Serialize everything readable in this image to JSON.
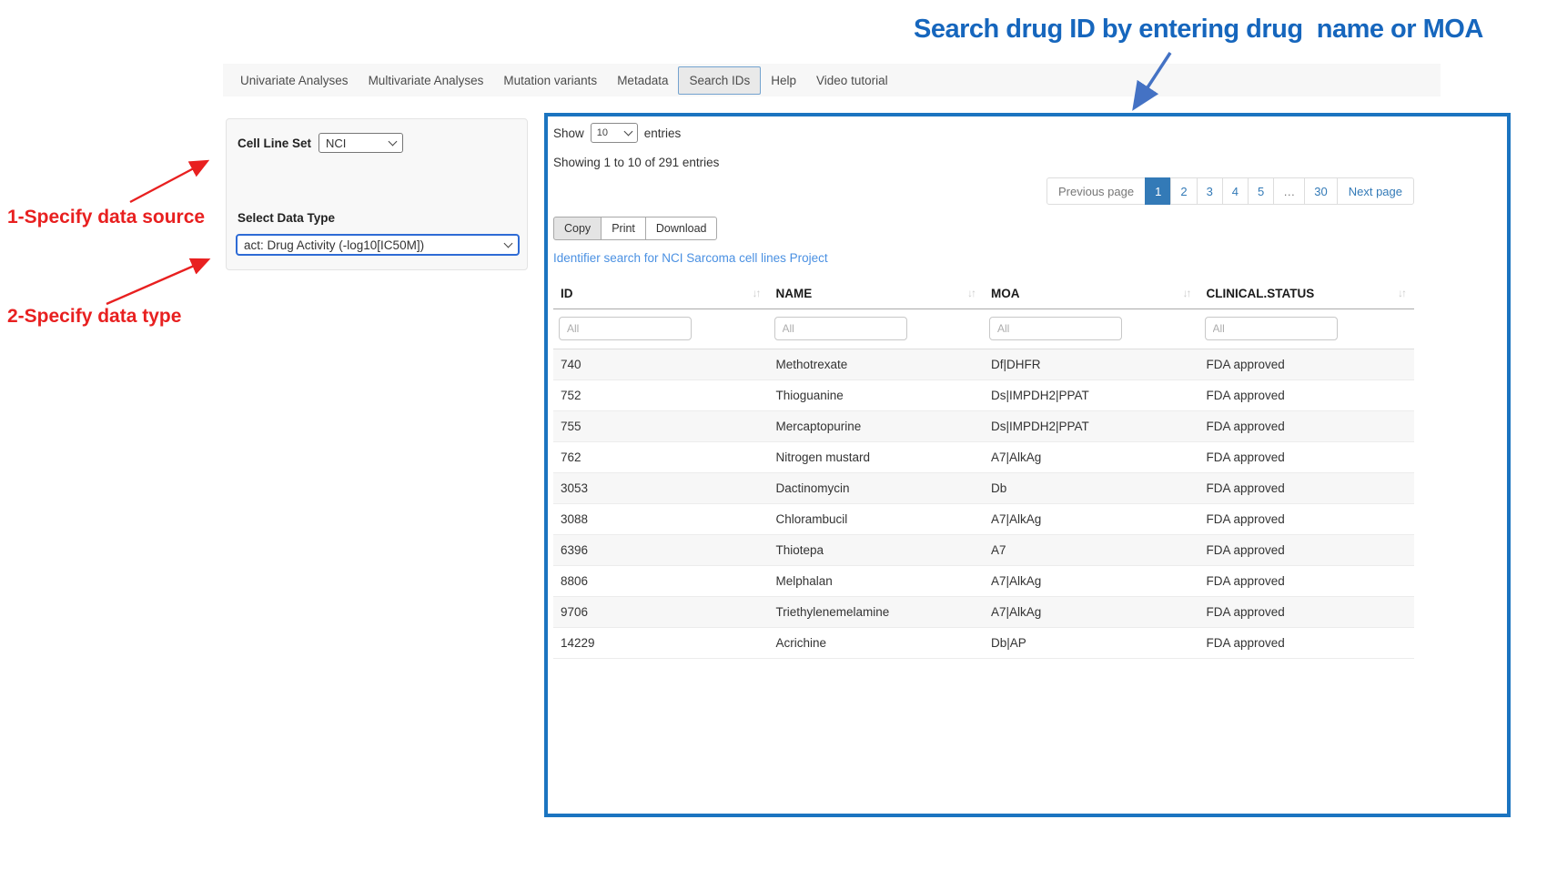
{
  "annotations": {
    "title": "Search drug ID by entering drug  name or MOA",
    "title_color": "#1666bd",
    "step1_label": "1-Specify data source",
    "step2_label": "2-Specify data type",
    "annotation_red": "#e82020",
    "arrow_blue": "#4472c4",
    "highlight_box_border": "#1b74c0"
  },
  "navbar": {
    "items": [
      {
        "label": "Univariate Analyses",
        "active": false
      },
      {
        "label": "Multivariate Analyses",
        "active": false
      },
      {
        "label": "Mutation variants",
        "active": false
      },
      {
        "label": "Metadata",
        "active": false
      },
      {
        "label": "Search IDs",
        "active": true
      },
      {
        "label": "Help",
        "active": false
      },
      {
        "label": "Video tutorial",
        "active": false
      }
    ]
  },
  "controls_panel": {
    "cell_line_set_label": "Cell Line Set",
    "cell_line_set_value": "NCI",
    "data_type_label": "Select Data Type",
    "data_type_value": "act: Drug Activity (-log10[IC50M])"
  },
  "results_panel": {
    "show_label": "Show",
    "page_length_value": "10",
    "entries_label": "entries",
    "info_text": "Showing 1 to 10 of 291 entries",
    "pagination": {
      "previous_label": "Previous page",
      "pages": [
        "1",
        "2",
        "3",
        "4",
        "5",
        "…",
        "30"
      ],
      "active_page": "1",
      "next_label": "Next page"
    },
    "export_buttons": [
      "Copy",
      "Print",
      "Download"
    ],
    "identifier_link": "Identifier search for NCI Sarcoma cell lines Project",
    "table": {
      "columns": [
        "ID",
        "NAME",
        "MOA",
        "CLINICAL.STATUS"
      ],
      "filter_placeholder": "All",
      "rows": [
        [
          "740",
          "Methotrexate",
          "Df|DHFR",
          "FDA approved"
        ],
        [
          "752",
          "Thioguanine",
          "Ds|IMPDH2|PPAT",
          "FDA approved"
        ],
        [
          "755",
          "Mercaptopurine",
          "Ds|IMPDH2|PPAT",
          "FDA approved"
        ],
        [
          "762",
          "Nitrogen mustard",
          "A7|AlkAg",
          "FDA approved"
        ],
        [
          "3053",
          "Dactinomycin",
          "Db",
          "FDA approved"
        ],
        [
          "3088",
          "Chlorambucil",
          "A7|AlkAg",
          "FDA approved"
        ],
        [
          "6396",
          "Thiotepa",
          "A7",
          "FDA approved"
        ],
        [
          "8806",
          "Melphalan",
          "A7|AlkAg",
          "FDA approved"
        ],
        [
          "9706",
          "Triethylenemelamine",
          "A7|AlkAg",
          "FDA approved"
        ],
        [
          "14229",
          "Acrichine",
          "Db|AP",
          "FDA approved"
        ]
      ]
    }
  }
}
